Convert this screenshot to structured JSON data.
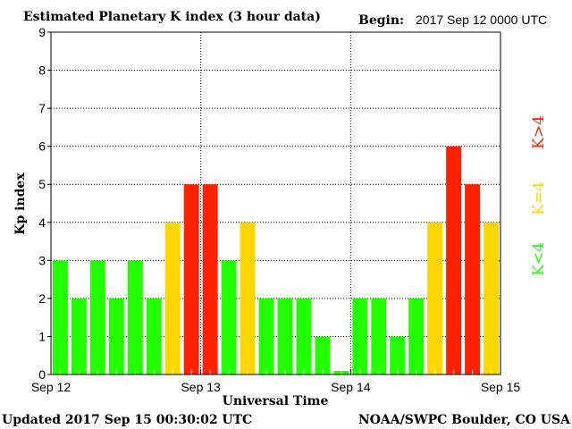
{
  "chart_data": {
    "type": "bar",
    "title": "Estimated Planetary K index (3 hour data)",
    "begin_label": "Begin:",
    "begin_value": "2017 Sep 12 0000 UTC",
    "xlabel": "Universal Time",
    "ylabel": "Kp index",
    "ylim": [
      0,
      9
    ],
    "yticks": [
      "0",
      "1",
      "2",
      "3",
      "4",
      "5",
      "6",
      "7",
      "8",
      "9"
    ],
    "xticks": [
      "Sep 12",
      "Sep 13",
      "Sep 14",
      "Sep 15"
    ],
    "interval_hours": 3,
    "values": [
      3,
      2,
      3,
      2,
      3,
      2,
      4,
      5,
      5,
      3,
      4,
      2,
      2,
      2,
      1,
      0,
      2,
      2,
      1,
      2,
      4,
      6,
      5,
      4
    ],
    "legend": [
      {
        "label": "K<4",
        "color": "#22ff00"
      },
      {
        "label": "K=4",
        "color": "#ffd700"
      },
      {
        "label": "K>4",
        "color": "#ff2200"
      }
    ],
    "grid": true
  },
  "footer": {
    "updated": "Updated 2017 Sep 15 00:30:02 UTC",
    "source": "NOAA/SWPC Boulder, CO USA"
  }
}
